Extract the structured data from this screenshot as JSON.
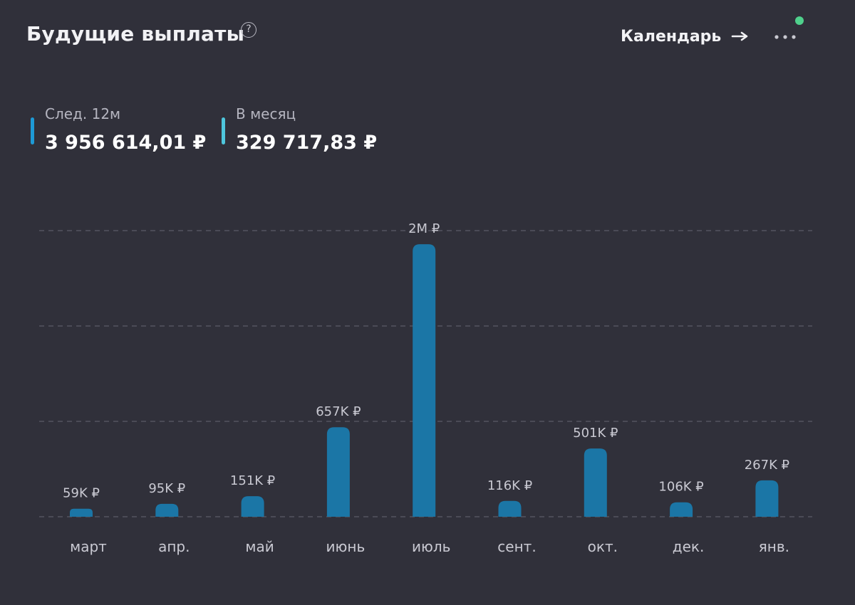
{
  "header": {
    "title": "Будущие выплаты",
    "help_glyph": "?",
    "calendar_label": "Календарь",
    "status_color": "#4fd08c"
  },
  "summary": [
    {
      "label": "След. 12м",
      "value": "3 956 614,01 ₽",
      "color": "#1e9ad6"
    },
    {
      "label": "В месяц",
      "value": "329 717,83 ₽",
      "color": "#4ec6dc"
    }
  ],
  "icons": {
    "help": "help-icon",
    "arrow": "arrow-right-icon",
    "more": "more-dots-icon"
  },
  "chart_data": {
    "type": "bar",
    "categories": [
      "март",
      "апр.",
      "май",
      "июнь",
      "июль",
      "сент.",
      "окт.",
      "дек.",
      "янв."
    ],
    "values": [
      59000,
      95000,
      151000,
      657000,
      2000000,
      116000,
      501000,
      106000,
      267000
    ],
    "value_labels": [
      "59K ₽",
      "95K ₽",
      "151K ₽",
      "657K ₽",
      "2M ₽",
      "116K ₽",
      "501K ₽",
      "106K ₽",
      "267K ₽"
    ],
    "ylim": [
      0,
      2100000
    ],
    "grid": true,
    "grid_style": "dashed",
    "title": "",
    "xlabel": "",
    "ylabel": "",
    "bar_color": "#1b76a6"
  }
}
